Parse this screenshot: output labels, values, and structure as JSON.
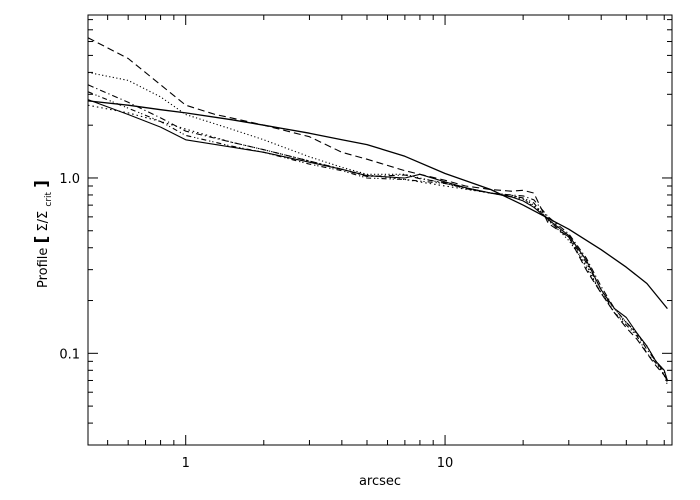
{
  "chart_data": {
    "type": "line",
    "title": "",
    "xlabel": "arcsec",
    "ylabel": "Profile [Σ/Σ_crit]",
    "ylabel_parts": {
      "prefix": "Profile ",
      "open": "[",
      "num": "Σ/Σ",
      "sub": "crit",
      "close": "]"
    },
    "xscale": "log",
    "yscale": "log",
    "xlim": [
      0.42,
      75
    ],
    "ylim": [
      0.03,
      8.5
    ],
    "xticks": [
      {
        "value": 1,
        "label": "1"
      },
      {
        "value": 10,
        "label": "10"
      }
    ],
    "yticks": [
      {
        "value": 0.1,
        "label": "0.1"
      },
      {
        "value": 1.0,
        "label": "1.0"
      }
    ],
    "grid": false,
    "legend": "none",
    "series": [
      {
        "style": "solid",
        "x": [
          0.42,
          0.6,
          0.8,
          1.0,
          1.5,
          2,
          3,
          4,
          5,
          7,
          10,
          15,
          20,
          30,
          40,
          50,
          60,
          72
        ],
        "y": [
          2.75,
          2.6,
          2.45,
          2.35,
          2.15,
          2.0,
          1.8,
          1.65,
          1.55,
          1.33,
          1.06,
          0.86,
          0.7,
          0.51,
          0.39,
          0.31,
          0.25,
          0.18
        ]
      },
      {
        "style": "solid-thin",
        "x": [
          0.42,
          0.6,
          0.8,
          1.0,
          1.5,
          2,
          3,
          4,
          5,
          7,
          8,
          10,
          12,
          15,
          18,
          20,
          22,
          25,
          30,
          35,
          40,
          45,
          50,
          55,
          60,
          65,
          70,
          72
        ],
        "y": [
          2.8,
          2.3,
          1.95,
          1.65,
          1.5,
          1.4,
          1.23,
          1.12,
          1.03,
          1.0,
          1.05,
          0.95,
          0.88,
          0.82,
          0.78,
          0.74,
          0.68,
          0.58,
          0.47,
          0.34,
          0.23,
          0.18,
          0.16,
          0.13,
          0.11,
          0.09,
          0.08,
          0.07
        ]
      },
      {
        "style": "dashed",
        "x": [
          0.42,
          0.6,
          0.8,
          1.0,
          1.3,
          1.5,
          2,
          3,
          4,
          5,
          7,
          8,
          10,
          12,
          15,
          18,
          20,
          22,
          25,
          30,
          35,
          40,
          45,
          50,
          55,
          60,
          65,
          70,
          72
        ],
        "y": [
          6.3,
          4.8,
          3.4,
          2.6,
          2.3,
          2.2,
          2.0,
          1.72,
          1.4,
          1.28,
          1.1,
          1.05,
          0.97,
          0.9,
          0.86,
          0.84,
          0.85,
          0.82,
          0.55,
          0.46,
          0.3,
          0.22,
          0.17,
          0.14,
          0.12,
          0.1,
          0.085,
          0.075,
          0.07
        ]
      },
      {
        "style": "dotted",
        "x": [
          0.42,
          0.6,
          0.8,
          1.0,
          1.5,
          2,
          3,
          4,
          5,
          7,
          8,
          10,
          12,
          15,
          18,
          20,
          22,
          25,
          30,
          35,
          40,
          45,
          50,
          55,
          60,
          65,
          70,
          72
        ],
        "y": [
          4.0,
          3.6,
          2.9,
          2.3,
          1.9,
          1.65,
          1.32,
          1.15,
          1.05,
          1.05,
          1.0,
          0.93,
          0.87,
          0.82,
          0.8,
          0.76,
          0.7,
          0.58,
          0.44,
          0.32,
          0.22,
          0.17,
          0.15,
          0.13,
          0.11,
          0.09,
          0.08,
          0.07
        ]
      },
      {
        "style": "dash-dot",
        "x": [
          0.42,
          0.6,
          0.8,
          1.0,
          1.5,
          2,
          3,
          4,
          5,
          7,
          8,
          10,
          12,
          15,
          18,
          20,
          22,
          25,
          30,
          35,
          40,
          45,
          50,
          55,
          60,
          65,
          70,
          72
        ],
        "y": [
          3.4,
          2.7,
          2.2,
          1.85,
          1.6,
          1.45,
          1.25,
          1.12,
          1.02,
          1.04,
          0.99,
          0.94,
          0.87,
          0.82,
          0.8,
          0.79,
          0.75,
          0.6,
          0.48,
          0.35,
          0.24,
          0.18,
          0.15,
          0.13,
          0.105,
          0.09,
          0.078,
          0.068
        ]
      },
      {
        "style": "dash-dot-dot",
        "x": [
          0.42,
          0.6,
          0.8,
          1.0,
          1.5,
          2,
          3,
          4,
          5,
          7,
          8,
          10,
          12,
          15,
          18,
          20,
          22,
          25,
          30,
          35,
          40,
          45,
          50,
          55,
          60,
          65,
          70,
          72
        ],
        "y": [
          3.1,
          2.5,
          2.1,
          1.75,
          1.52,
          1.4,
          1.2,
          1.1,
          1.0,
          0.98,
          0.96,
          0.93,
          0.88,
          0.82,
          0.79,
          0.77,
          0.72,
          0.57,
          0.46,
          0.33,
          0.23,
          0.17,
          0.145,
          0.125,
          0.1,
          0.088,
          0.075,
          0.066
        ]
      },
      {
        "style": "dotted-2",
        "x": [
          0.42,
          0.6,
          0.8,
          1.0,
          1.5,
          2,
          3,
          4,
          5,
          7,
          10,
          15,
          20,
          25,
          30,
          40,
          50,
          60,
          72
        ],
        "y": [
          2.6,
          2.35,
          2.1,
          1.9,
          1.6,
          1.45,
          1.25,
          1.12,
          1.04,
          0.98,
          0.9,
          0.82,
          0.76,
          0.6,
          0.46,
          0.22,
          0.15,
          0.11,
          0.07
        ]
      }
    ]
  }
}
